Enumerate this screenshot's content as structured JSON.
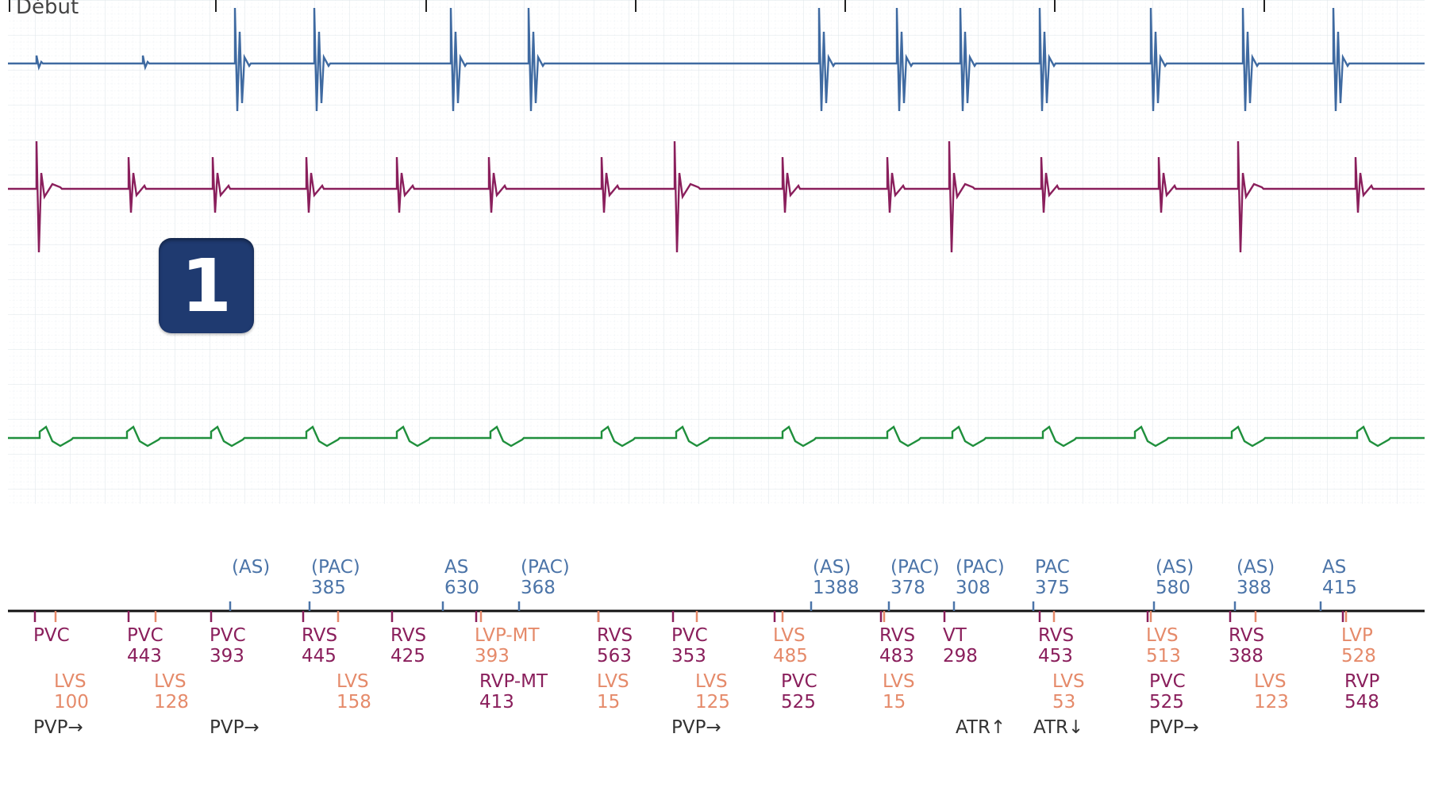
{
  "title": "Début",
  "badge": "1",
  "colors": {
    "grid_minor": "#e9eef2",
    "grid_major": "#d4dce2",
    "channel_atrial": "#3f6aa1",
    "channel_ventricular": "#8a1f5c",
    "channel_shock": "#1f8f3c",
    "badge_bg": "#1f3a70"
  },
  "atrial_markers": [
    {
      "label": "(AS)",
      "value": ""
    },
    {
      "label": "(PAC)",
      "value": "385"
    },
    {
      "label": "AS",
      "value": "630"
    },
    {
      "label": "(PAC)",
      "value": "368"
    },
    {
      "label": "(AS)",
      "value": "1388"
    },
    {
      "label": "(PAC)",
      "value": "378"
    },
    {
      "label": "(PAC)",
      "value": "308"
    },
    {
      "label": "PAC",
      "value": "375"
    },
    {
      "label": "(AS)",
      "value": "580"
    },
    {
      "label": "(AS)",
      "value": "388"
    },
    {
      "label": "AS",
      "value": "415"
    }
  ],
  "ventricular_markers": [
    {
      "label": "PVC",
      "value": ""
    },
    {
      "label": "PVC",
      "value": "443"
    },
    {
      "label": "PVC",
      "value": "393"
    },
    {
      "label": "RVS",
      "value": "445"
    },
    {
      "label": "RVS",
      "value": "425"
    },
    {
      "label": "LVP-MT",
      "value": "393"
    },
    {
      "label": "RVS",
      "value": "563"
    },
    {
      "label": "PVC",
      "value": "353"
    },
    {
      "label": "LVS",
      "value": "485"
    },
    {
      "label": "RVS",
      "value": "483"
    },
    {
      "label": "VT",
      "value": "298"
    },
    {
      "label": "RVS",
      "value": "453"
    },
    {
      "label": "LVS",
      "value": "513"
    },
    {
      "label": "RVS",
      "value": "388"
    },
    {
      "label": "LVP",
      "value": "528"
    }
  ],
  "lower_markers": [
    {
      "label": "LVS",
      "value": "100"
    },
    {
      "label": "LVS",
      "value": "128"
    },
    {
      "label": "LVS",
      "value": "158"
    },
    {
      "label": "RVP-MT",
      "value": "413"
    },
    {
      "label": "LVS",
      "value": "15"
    },
    {
      "label": "LVS",
      "value": "125"
    },
    {
      "label": "PVC",
      "value": "525"
    },
    {
      "label": "LVS",
      "value": "15"
    },
    {
      "label": "LVS",
      "value": "53"
    },
    {
      "label": "PVC",
      "value": "525"
    },
    {
      "label": "LVS",
      "value": "123"
    },
    {
      "label": "RVP",
      "value": "548"
    }
  ],
  "annotations": [
    "PVP→",
    "PVP→",
    "PVP→",
    "ATR↑",
    "ATR↓",
    "PVP→"
  ]
}
